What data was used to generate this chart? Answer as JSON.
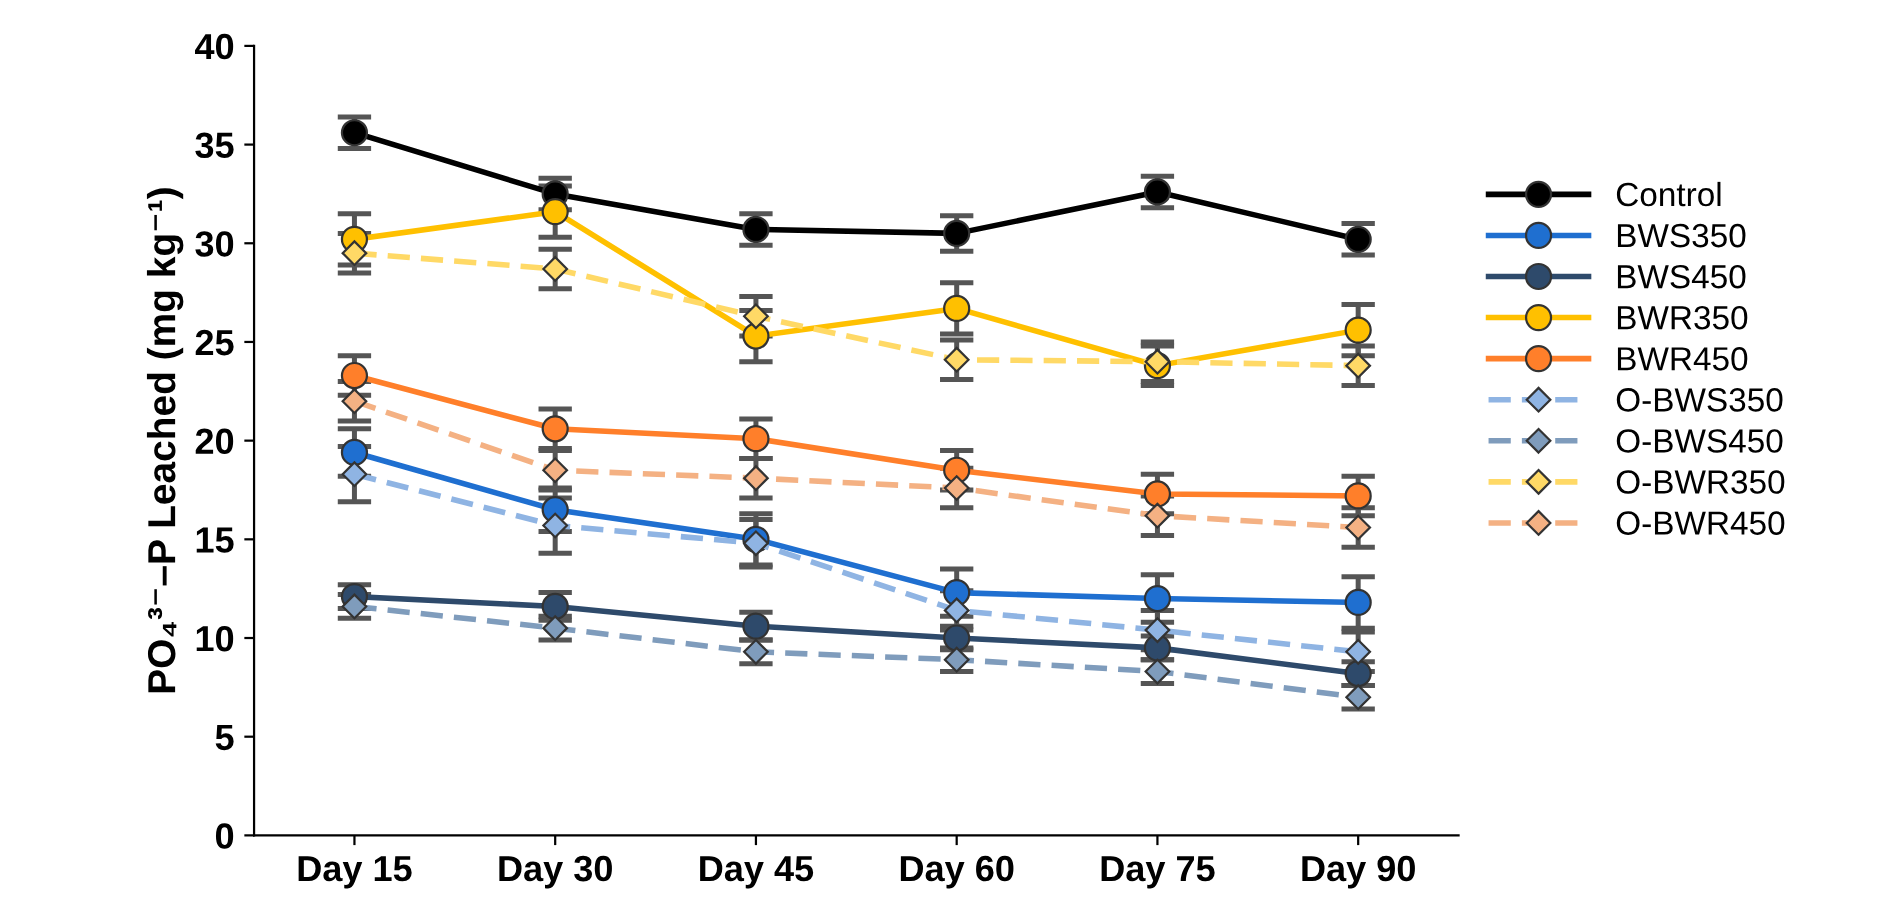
{
  "chart_data": {
    "type": "line",
    "ylabel": "PO₄³⁻–P Leached (mg kg⁻¹)",
    "categories": [
      "Day 15",
      "Day 30",
      "Day 45",
      "Day 60",
      "Day 75",
      "Day 90"
    ],
    "ylim": [
      0,
      40
    ],
    "yticks": [
      0,
      5,
      10,
      15,
      20,
      25,
      30,
      35,
      40
    ],
    "grid": false,
    "legend": "right",
    "series": [
      {
        "name": "Control",
        "color": "#000000",
        "marker": "circle",
        "line_style": "solid",
        "values": [
          35.6,
          32.5,
          30.7,
          30.5,
          32.6,
          30.2
        ],
        "errors": [
          0.8,
          0.8,
          0.8,
          0.9,
          0.8,
          0.8
        ]
      },
      {
        "name": "BWS350",
        "color": "#1f6fd0",
        "marker": "circle",
        "line_style": "solid",
        "values": [
          19.4,
          16.5,
          15.0,
          12.3,
          12.0,
          11.8
        ],
        "errors": [
          1.2,
          1.1,
          1.3,
          1.2,
          1.2,
          1.3
        ]
      },
      {
        "name": "BWS450",
        "color": "#2e4a6b",
        "marker": "circle",
        "line_style": "solid",
        "values": [
          12.1,
          11.6,
          10.6,
          10.0,
          9.5,
          8.2
        ],
        "errors": [
          0.6,
          0.7,
          0.7,
          0.6,
          0.6,
          0.6
        ]
      },
      {
        "name": "BWR350",
        "color": "#ffc000",
        "marker": "circle",
        "line_style": "solid",
        "values": [
          30.2,
          31.6,
          25.3,
          26.7,
          23.8,
          25.6
        ],
        "errors": [
          1.3,
          1.3,
          1.3,
          1.3,
          1.0,
          1.3
        ]
      },
      {
        "name": "BWR450",
        "color": "#ff7f2a",
        "marker": "circle",
        "line_style": "solid",
        "values": [
          23.3,
          20.6,
          20.1,
          18.5,
          17.3,
          17.2
        ],
        "errors": [
          1.0,
          1.0,
          1.0,
          1.0,
          1.0,
          1.0
        ]
      },
      {
        "name": "O-BWS350",
        "color": "#8fb4e3",
        "marker": "diamond",
        "line_style": "dashed",
        "values": [
          18.3,
          15.7,
          14.8,
          11.4,
          10.4,
          9.3
        ],
        "errors": [
          1.4,
          1.4,
          1.2,
          1.0,
          1.0,
          1.0
        ]
      },
      {
        "name": "O-BWS450",
        "color": "#7f9cbc",
        "marker": "diamond",
        "line_style": "dashed",
        "values": [
          11.6,
          10.5,
          9.3,
          8.9,
          8.3,
          7.0
        ],
        "errors": [
          0.6,
          0.6,
          0.6,
          0.6,
          0.6,
          0.6
        ]
      },
      {
        "name": "O-BWR350",
        "color": "#ffd966",
        "marker": "diamond",
        "line_style": "dashed",
        "values": [
          29.5,
          28.7,
          26.3,
          24.1,
          24.0,
          23.8
        ],
        "errors": [
          1.0,
          1.0,
          1.0,
          1.0,
          1.0,
          1.0
        ]
      },
      {
        "name": "O-BWR450",
        "color": "#f4b183",
        "marker": "diamond",
        "line_style": "dashed",
        "values": [
          22.0,
          18.5,
          18.1,
          17.6,
          16.2,
          15.6
        ],
        "errors": [
          1.0,
          1.0,
          1.0,
          1.0,
          1.0,
          1.0
        ]
      }
    ]
  }
}
